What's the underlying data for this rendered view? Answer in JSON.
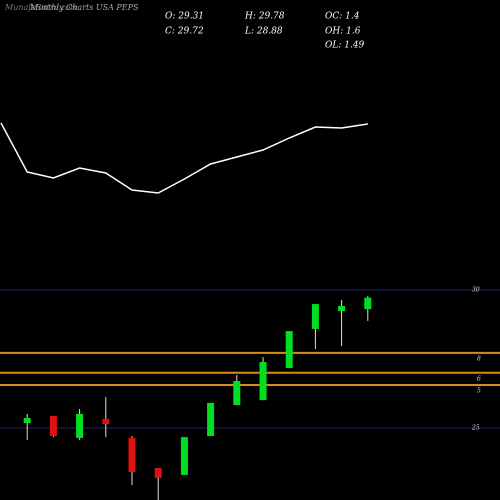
{
  "chart_data": [
    {
      "type": "candlestick",
      "title": "Monthly Charts USA PEPS",
      "watermark": "MunafaSutra.com",
      "info": [
        "O: 29.31",
        "H: 29.78",
        "OC: 1.4",
        "C: 29.72",
        "L: 28.88",
        "OH: 1.6",
        "OL: 1.49"
      ],
      "up_color": "#00e020",
      "down_color": "#e01010",
      "open": [
        25.18,
        25.43,
        24.64,
        25.33,
        24.64,
        23.55,
        23.3,
        24.71,
        25.83,
        26.01,
        27.17,
        28.59,
        29.24,
        29.31
      ],
      "high": [
        25.51,
        25.43,
        25.69,
        26.12,
        24.71,
        23.55,
        24.67,
        25.91,
        26.92,
        27.57,
        28.51,
        29.49,
        29.64,
        29.78
      ],
      "low": [
        24.57,
        24.67,
        24.57,
        24.67,
        22.93,
        22.39,
        23.3,
        24.71,
        25.83,
        26.01,
        27.17,
        27.86,
        27.97,
        28.88
      ],
      "close": [
        25.36,
        24.71,
        25.51,
        25.14,
        23.41,
        23.19,
        24.67,
        25.91,
        26.7,
        27.39,
        28.51,
        29.49,
        29.42,
        29.72
      ],
      "ylim": [
        22.4,
        31
      ],
      "yticks": [
        30,
        25
      ],
      "levels": [
        {
          "value": 27.72,
          "label": "8"
        },
        {
          "value": 27.0,
          "label": "6"
        },
        {
          "value": 26.56,
          "label": "5"
        }
      ],
      "level_color": "#d98c1a",
      "grid_color": "#1c2a5a"
    },
    {
      "type": "line",
      "values": [
        50.8,
        31.2,
        28.8,
        32.8,
        30.8,
        24,
        22.8,
        28.4,
        34.4,
        37.2,
        40,
        44.8,
        49.2,
        48.8,
        50.4
      ],
      "ylim": [
        0,
        100
      ],
      "color": "#ffffff"
    }
  ]
}
